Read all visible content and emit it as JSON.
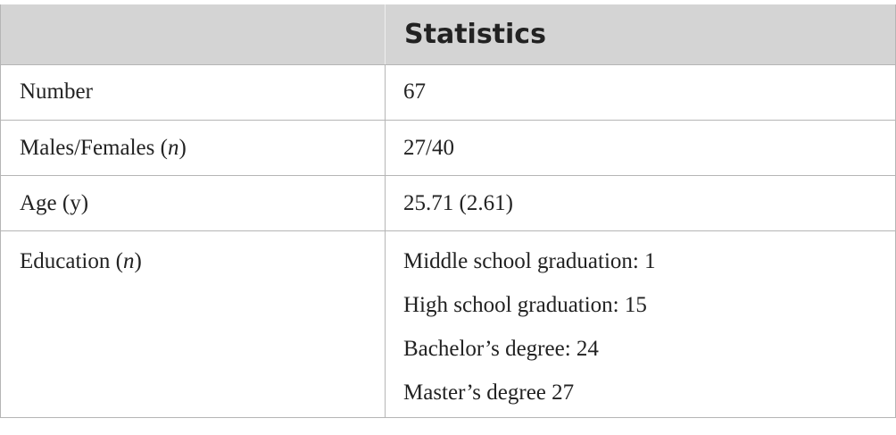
{
  "table": {
    "header": "Statistics",
    "rows": [
      {
        "label": [
          "Number"
        ],
        "values": [
          "67"
        ]
      },
      {
        "label": [
          "Males/Females (",
          "n",
          ")"
        ],
        "values": [
          "27/40"
        ]
      },
      {
        "label": [
          "Age (y)"
        ],
        "values": [
          "25.71 (2.61)"
        ]
      },
      {
        "label": [
          "Education (",
          "n",
          ")"
        ],
        "values": [
          "Middle school graduation: 1",
          "High school graduation: 15",
          "Bachelor’s degree: 24",
          "Master’s degree 27"
        ]
      }
    ]
  }
}
